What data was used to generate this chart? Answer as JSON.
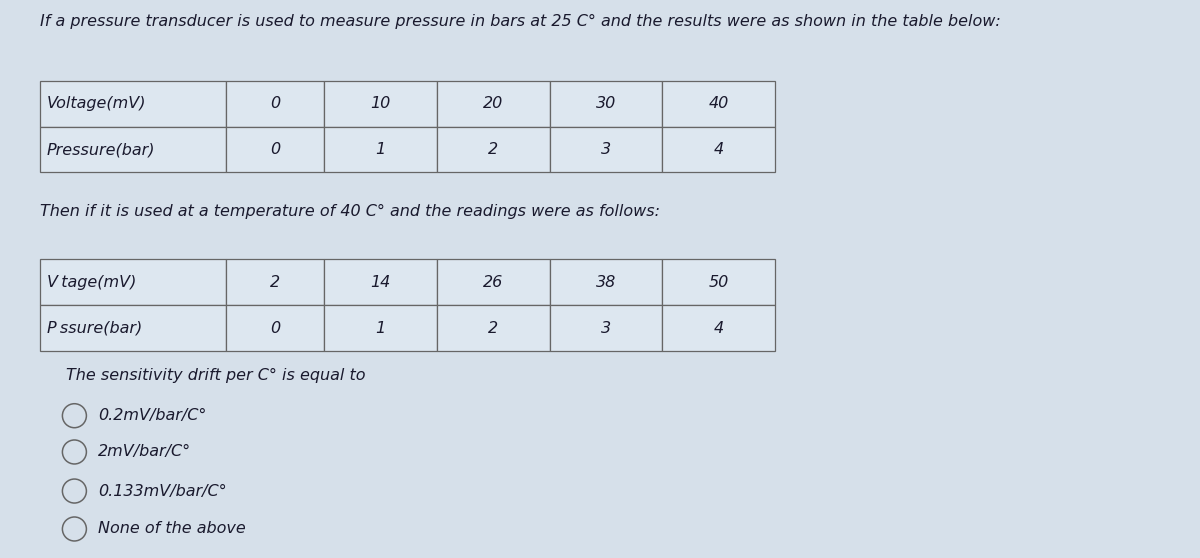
{
  "title_text": "If a pressure transducer is used to measure pressure in bars at 25 C° and the results were as shown in the table below:",
  "table1_headers": [
    "Voltage(mV)",
    "0",
    "10",
    "20",
    "30",
    "40"
  ],
  "table1_row2": [
    "Pressure(bar)",
    "0",
    "1",
    "2",
    "3",
    "4"
  ],
  "mid_text": "Then if it is used at a temperature of 40 C° and the readings were as follows:",
  "table2_headers": [
    "V tage(mV)",
    "2",
    "14",
    "26",
    "38",
    "50"
  ],
  "table2_row2": [
    "P ssure(bar)",
    "0",
    "1",
    "2",
    "3",
    "4"
  ],
  "question_text": "The sensitivity drift per C° is equal to",
  "options": [
    "0.2mV/bar/C°",
    "2mV/bar/C°",
    "0.133mV/bar/C°",
    "None of the above"
  ],
  "bg_color": "#d6e0ea",
  "text_color": "#1a1a2e",
  "table_bg": "#dde7f0",
  "table_border": "#666666"
}
